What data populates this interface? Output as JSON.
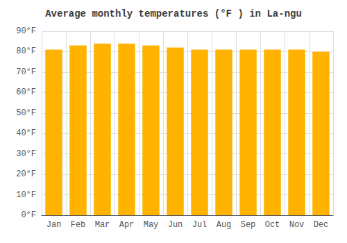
{
  "chart_data": {
    "type": "bar",
    "title": "Average monthly temperatures (°F ) in La-ngu",
    "categories": [
      "Jan",
      "Feb",
      "Mar",
      "Apr",
      "May",
      "Jun",
      "Jul",
      "Aug",
      "Sep",
      "Oct",
      "Nov",
      "Dec"
    ],
    "values": [
      81,
      83,
      84,
      84,
      83,
      82,
      81,
      81,
      81,
      81,
      81,
      80
    ],
    "color": "#FFB300",
    "ylim": [
      0,
      90
    ],
    "yticks": [
      {
        "value": 0,
        "label": "0°F"
      },
      {
        "value": 10,
        "label": "10°F"
      },
      {
        "value": 20,
        "label": "20°F"
      },
      {
        "value": 30,
        "label": "30°F"
      },
      {
        "value": 40,
        "label": "40°F"
      },
      {
        "value": 50,
        "label": "50°F"
      },
      {
        "value": 60,
        "label": "60°F"
      },
      {
        "value": 70,
        "label": "70°F"
      },
      {
        "value": 80,
        "label": "80°F"
      },
      {
        "value": 90,
        "label": "90°F"
      }
    ],
    "grid": true
  }
}
